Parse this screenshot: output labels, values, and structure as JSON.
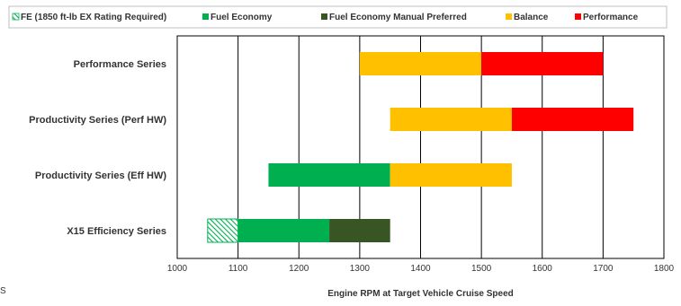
{
  "chart_data": {
    "type": "bar",
    "orientation": "horizontal-floating",
    "title": "",
    "xlabel": "Engine RPM at Target Vehicle Cruise Speed",
    "ylabel": "",
    "xlim": [
      1000,
      1800
    ],
    "xticks": [
      1000,
      1100,
      1200,
      1300,
      1400,
      1500,
      1600,
      1700,
      1800
    ],
    "grid": "vertical",
    "legend_position": "top",
    "categories": [
      "Performance Series",
      "Productivity Series (Perf HW)",
      "Productivity Series (Eff HW)",
      "X15 Efficiency Series"
    ],
    "series": [
      {
        "name": "FE (1850 ft-lb EX Rating Required)",
        "color": "#00b050",
        "pattern": "hatched",
        "ranges": [
          null,
          null,
          null,
          [
            1050,
            1100
          ]
        ]
      },
      {
        "name": "Fuel Economy",
        "color": "#00b050",
        "ranges": [
          null,
          null,
          [
            1150,
            1350
          ],
          [
            1100,
            1250
          ]
        ]
      },
      {
        "name": "Fuel Economy Manual Preferred",
        "color": "#375623",
        "ranges": [
          null,
          null,
          null,
          [
            1250,
            1350
          ]
        ]
      },
      {
        "name": "Balance",
        "color": "#ffc000",
        "ranges": [
          [
            1300,
            1500
          ],
          [
            1350,
            1550
          ],
          [
            1350,
            1550
          ],
          null
        ]
      },
      {
        "name": "Performance",
        "color": "#ff0000",
        "ranges": [
          [
            1500,
            1700
          ],
          [
            1550,
            1750
          ],
          null,
          null
        ]
      }
    ],
    "stray_text": "S"
  }
}
